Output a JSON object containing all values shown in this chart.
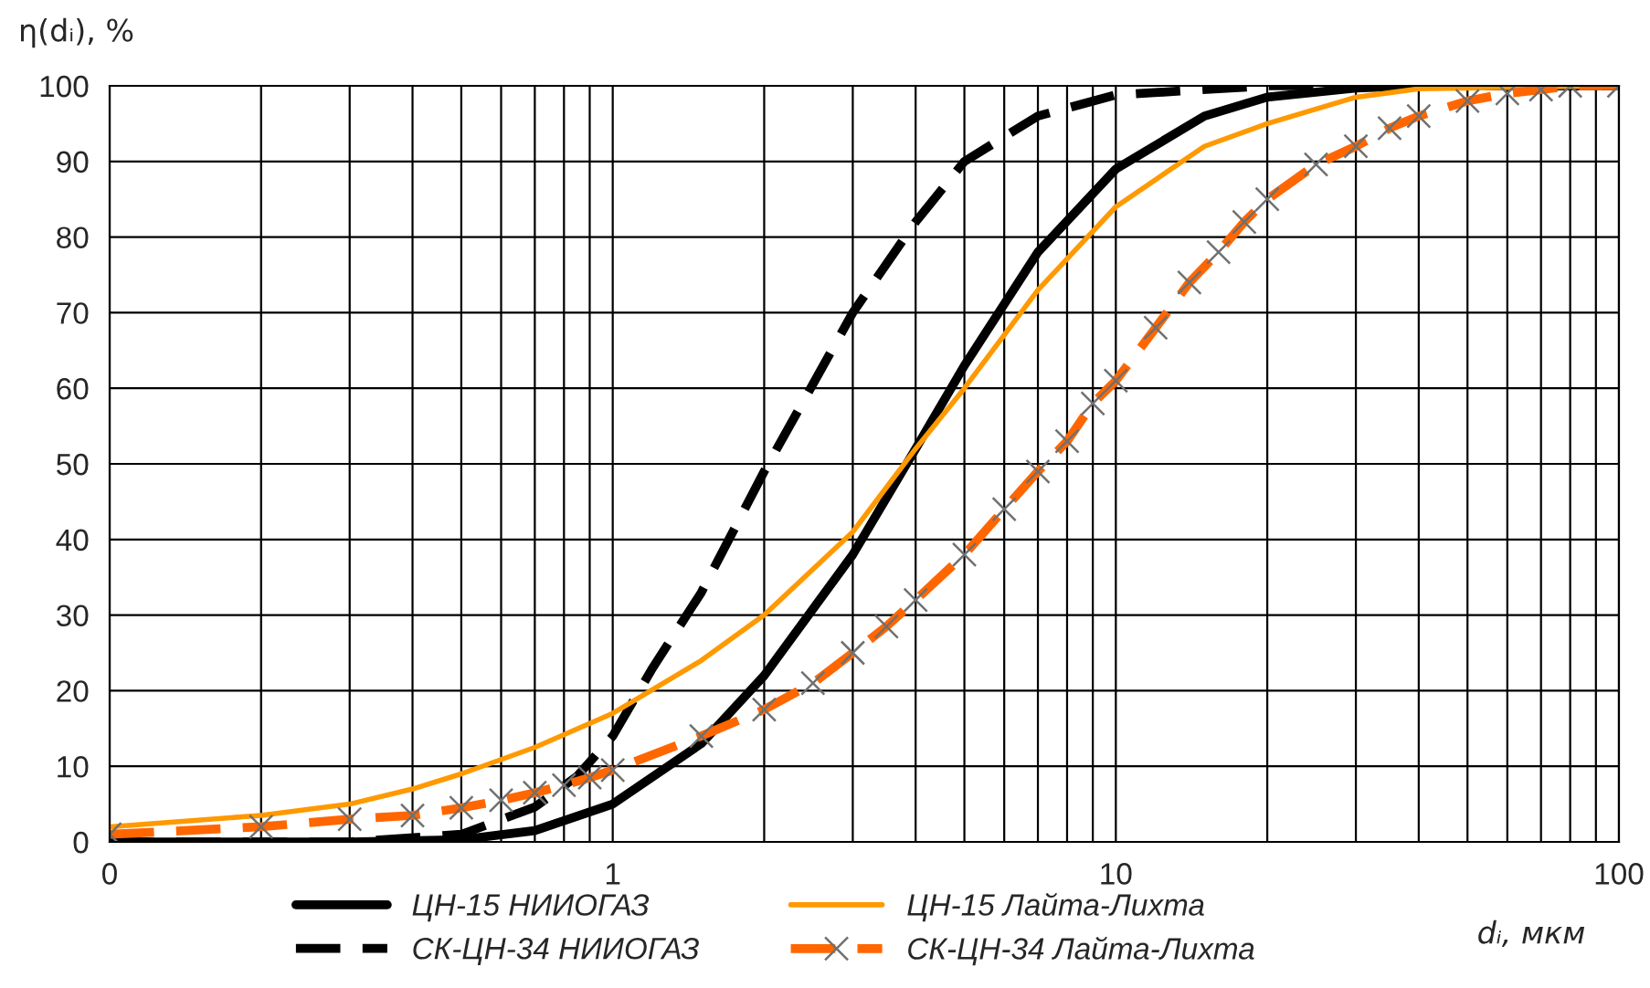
{
  "chart_data": {
    "type": "line",
    "xlabel": "dᵢ, мкм",
    "ylabel": "η(dᵢ), %",
    "log": "x",
    "xlim": [
      0.1,
      100
    ],
    "xticks": [
      {
        "value": 0.1,
        "label": "0"
      },
      1,
      10,
      100
    ],
    "ylim": [
      0,
      100
    ],
    "yticks": [
      0,
      10,
      20,
      30,
      40,
      50,
      60,
      70,
      80,
      90,
      100
    ],
    "grid": true,
    "legend": "bottom",
    "series": [
      {
        "name": "ЦН-15 НИИОГАЗ",
        "color": "#000000",
        "line_style": "solid",
        "marker": "none",
        "x": [
          0.1,
          0.3,
          0.5,
          0.7,
          1.0,
          1.5,
          2,
          3,
          4,
          5,
          7,
          10,
          15,
          20,
          30,
          40,
          100
        ],
        "values": [
          0,
          0,
          0.3,
          1.5,
          5,
          13,
          22,
          38,
          52,
          63,
          78,
          89,
          96,
          98.5,
          99.7,
          100,
          100
        ]
      },
      {
        "name": "СК-ЦН-34 НИИОГАЗ",
        "color": "#000000",
        "line_style": "dashed",
        "marker": "none",
        "x": [
          0.1,
          0.3,
          0.5,
          0.7,
          0.85,
          1.0,
          1.2,
          1.5,
          2,
          3,
          4,
          5,
          7,
          10,
          20,
          100
        ],
        "values": [
          0,
          0,
          1,
          4.6,
          8.7,
          14,
          23,
          33,
          49,
          70,
          82,
          90,
          96,
          98.8,
          100,
          100
        ]
      },
      {
        "name": "ЦН-15 Лайта-Лихта",
        "color": "#ff9900",
        "line_style": "solid",
        "marker": "none",
        "x": [
          0.1,
          0.2,
          0.3,
          0.4,
          0.5,
          0.7,
          1.0,
          1.5,
          2,
          3,
          4,
          5,
          7,
          10,
          15,
          20,
          30,
          40,
          100
        ],
        "values": [
          2,
          3.5,
          5,
          7,
          9,
          12.5,
          17,
          24,
          30,
          41,
          52,
          60,
          73,
          84,
          92,
          95,
          98.5,
          99.6,
          100
        ]
      },
      {
        "name": "СК-ЦН-34 Лайта-Лихта",
        "color": "#ff6600",
        "line_style": "dashed",
        "marker": "cross",
        "x": [
          0.1,
          0.2,
          0.3,
          0.4,
          0.5,
          0.6,
          0.7,
          0.8,
          0.9,
          1.0,
          1.5,
          2,
          2.5,
          3,
          3.5,
          4,
          5,
          6,
          7,
          8,
          9,
          10,
          12,
          14,
          16,
          18,
          20,
          25,
          30,
          35,
          40,
          50,
          60,
          70,
          80,
          100
        ],
        "values": [
          1,
          2,
          3,
          3.5,
          4.5,
          5.5,
          6.5,
          7.5,
          8.5,
          9.5,
          14,
          17.5,
          21,
          25,
          28.5,
          32,
          38,
          44,
          49,
          53,
          58,
          61,
          68,
          74,
          78,
          82,
          85,
          89.6,
          92,
          94.4,
          96,
          98,
          99,
          99.5,
          100,
          100
        ]
      }
    ]
  }
}
